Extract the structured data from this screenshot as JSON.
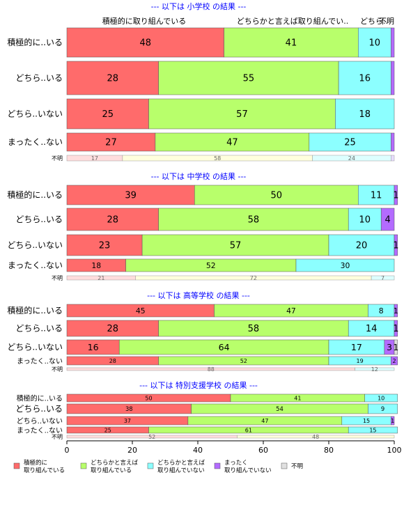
{
  "chart_data": {
    "type": "bar",
    "stacked": true,
    "orientation": "horizontal",
    "xlim": [
      0,
      100
    ],
    "x_ticks": [
      "0",
      "20",
      "40",
      "60",
      "80",
      "100"
    ],
    "top_labels": [
      "積極的に取り組んでいる",
      "どちらかと言えば取り組んでい..",
      "どちら..",
      "不明"
    ],
    "series": [
      {
        "name": "積極的に取り組んでいる",
        "legend": "積極的に\n取り組んでいる",
        "color": "#ff6b6b"
      },
      {
        "name": "どちらかと言えば取り組んでいる",
        "legend": "どちらかと言えば\n取り組んでいる",
        "color": "#b8ff6b"
      },
      {
        "name": "どちらかと言えば取り組んでいない",
        "legend": "どちらかと言えば\n取り組んでいない",
        "color": "#8cffff"
      },
      {
        "name": "まったく取り組んでいない",
        "legend": "まったく\n取り組んでいない",
        "color": "#b36bff"
      },
      {
        "name": "不明",
        "legend": "不明",
        "color": "#e0e0e0"
      }
    ],
    "panels": [
      {
        "title": "--- 以下は 小学校 の結果 ---",
        "categories": [
          "積極的に..いる",
          "どちら..いる",
          "どちら..いない",
          "まったく..ない",
          "不明"
        ],
        "values": [
          [
            48,
            41,
            10,
            1,
            0
          ],
          [
            28,
            55,
            16,
            1,
            0
          ],
          [
            25,
            57,
            18,
            0,
            0
          ],
          [
            27,
            47,
            25,
            1,
            0
          ],
          [
            17,
            58,
            24,
            1,
            0
          ]
        ],
        "labels": [
          [
            "48",
            "41",
            "10",
            "",
            ""
          ],
          [
            "28",
            "55",
            "16",
            "",
            ""
          ],
          [
            "25",
            "57",
            "18",
            "",
            ""
          ],
          [
            "27",
            "47",
            "25",
            "",
            ""
          ],
          [
            "17",
            "58",
            "24",
            "",
            ""
          ]
        ],
        "bar_heights": [
          1,
          1,
          1,
          0.6,
          0.2
        ]
      },
      {
        "title": "--- 以下は 中学校 の結果 ---",
        "categories": [
          "積極的に..いる",
          "どちら..いる",
          "どちら..いない",
          "まったく..ない",
          "不明"
        ],
        "values": [
          [
            39,
            50,
            11,
            1,
            0
          ],
          [
            28,
            58,
            10,
            4,
            0
          ],
          [
            23,
            57,
            20,
            1,
            0
          ],
          [
            18,
            52,
            30,
            0,
            0
          ],
          [
            21,
            72,
            7,
            0,
            0
          ]
        ],
        "labels": [
          [
            "39",
            "50",
            "11",
            "1",
            ""
          ],
          [
            "28",
            "58",
            "10",
            "4",
            ""
          ],
          [
            "23",
            "57",
            "20",
            "1",
            ""
          ],
          [
            "18",
            "52",
            "30",
            "",
            ""
          ],
          [
            "21",
            "72",
            "7",
            "",
            ""
          ]
        ],
        "bar_heights": [
          1,
          1,
          1,
          0.75,
          0.3
        ]
      },
      {
        "title": "--- 以下は 高等学校 の結果 ---",
        "categories": [
          "積極的に..いる",
          "どちら..いる",
          "どちら..いない",
          "まったく..ない",
          "不明"
        ],
        "values": [
          [
            45,
            47,
            8,
            1,
            0
          ],
          [
            28,
            58,
            14,
            1,
            0
          ],
          [
            16,
            64,
            17,
            3,
            1
          ],
          [
            28,
            52,
            19,
            2,
            0
          ],
          [
            88,
            0,
            12,
            0,
            0
          ]
        ],
        "labels": [
          [
            "45",
            "47",
            "8",
            "1",
            ""
          ],
          [
            "28",
            "58",
            "14",
            "1",
            ""
          ],
          [
            "16",
            "64",
            "17",
            "3",
            "1"
          ],
          [
            "28",
            "52",
            "19",
            "2",
            ""
          ],
          [
            "88",
            "",
            "12",
            "",
            ""
          ]
        ],
        "bar_heights": [
          1,
          1,
          1,
          0.65,
          0.25
        ]
      },
      {
        "title": "--- 以下は 特別支援学校 の結果 ---",
        "categories": [
          "積極的に..いる",
          "どちら..いる",
          "どちら..いない",
          "まったく..ない",
          "不明"
        ],
        "values": [
          [
            50,
            41,
            10,
            0,
            0
          ],
          [
            38,
            54,
            9,
            0,
            0
          ],
          [
            37,
            47,
            15,
            1,
            0
          ],
          [
            25,
            61,
            15,
            0,
            0
          ],
          [
            52,
            48,
            0,
            0,
            0
          ]
        ],
        "labels": [
          [
            "50",
            "41",
            "10",
            "",
            ""
          ],
          [
            "38",
            "54",
            "9",
            "",
            ""
          ],
          [
            "37",
            "47",
            "15",
            "1",
            ""
          ],
          [
            "25",
            "61",
            "15",
            "",
            ""
          ],
          [
            "52",
            "48",
            "",
            "",
            ""
          ]
        ],
        "bar_heights": [
          1,
          1,
          1,
          0.9,
          0.4
        ]
      }
    ]
  }
}
